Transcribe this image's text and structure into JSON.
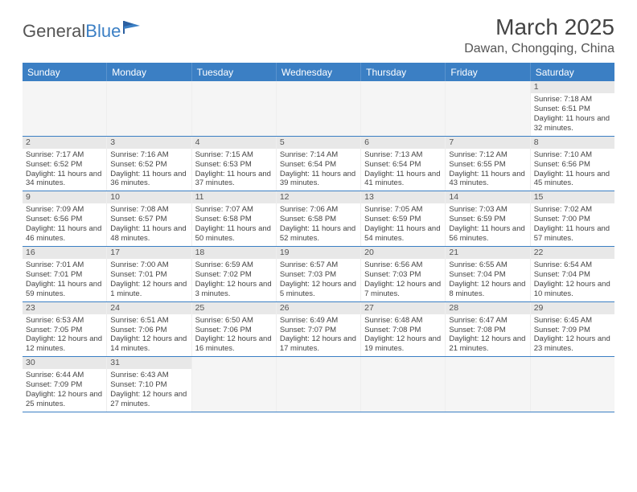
{
  "logo": {
    "part1": "General",
    "part2": "Blue"
  },
  "title": "March 2025",
  "location": "Dawan, Chongqing, China",
  "day_names": [
    "Sunday",
    "Monday",
    "Tuesday",
    "Wednesday",
    "Thursday",
    "Friday",
    "Saturday"
  ],
  "colors": {
    "header_bg": "#3b7fc4",
    "header_text": "#ffffff",
    "daynum_bg": "#e8e8e8",
    "row_border": "#3b7fc4",
    "text": "#444444"
  },
  "weeks": [
    [
      {
        "empty": true
      },
      {
        "empty": true
      },
      {
        "empty": true
      },
      {
        "empty": true
      },
      {
        "empty": true
      },
      {
        "empty": true
      },
      {
        "num": "1",
        "sunrise": "Sunrise: 7:18 AM",
        "sunset": "Sunset: 6:51 PM",
        "daylight": "Daylight: 11 hours and 32 minutes."
      }
    ],
    [
      {
        "num": "2",
        "sunrise": "Sunrise: 7:17 AM",
        "sunset": "Sunset: 6:52 PM",
        "daylight": "Daylight: 11 hours and 34 minutes."
      },
      {
        "num": "3",
        "sunrise": "Sunrise: 7:16 AM",
        "sunset": "Sunset: 6:52 PM",
        "daylight": "Daylight: 11 hours and 36 minutes."
      },
      {
        "num": "4",
        "sunrise": "Sunrise: 7:15 AM",
        "sunset": "Sunset: 6:53 PM",
        "daylight": "Daylight: 11 hours and 37 minutes."
      },
      {
        "num": "5",
        "sunrise": "Sunrise: 7:14 AM",
        "sunset": "Sunset: 6:54 PM",
        "daylight": "Daylight: 11 hours and 39 minutes."
      },
      {
        "num": "6",
        "sunrise": "Sunrise: 7:13 AM",
        "sunset": "Sunset: 6:54 PM",
        "daylight": "Daylight: 11 hours and 41 minutes."
      },
      {
        "num": "7",
        "sunrise": "Sunrise: 7:12 AM",
        "sunset": "Sunset: 6:55 PM",
        "daylight": "Daylight: 11 hours and 43 minutes."
      },
      {
        "num": "8",
        "sunrise": "Sunrise: 7:10 AM",
        "sunset": "Sunset: 6:56 PM",
        "daylight": "Daylight: 11 hours and 45 minutes."
      }
    ],
    [
      {
        "num": "9",
        "sunrise": "Sunrise: 7:09 AM",
        "sunset": "Sunset: 6:56 PM",
        "daylight": "Daylight: 11 hours and 46 minutes."
      },
      {
        "num": "10",
        "sunrise": "Sunrise: 7:08 AM",
        "sunset": "Sunset: 6:57 PM",
        "daylight": "Daylight: 11 hours and 48 minutes."
      },
      {
        "num": "11",
        "sunrise": "Sunrise: 7:07 AM",
        "sunset": "Sunset: 6:58 PM",
        "daylight": "Daylight: 11 hours and 50 minutes."
      },
      {
        "num": "12",
        "sunrise": "Sunrise: 7:06 AM",
        "sunset": "Sunset: 6:58 PM",
        "daylight": "Daylight: 11 hours and 52 minutes."
      },
      {
        "num": "13",
        "sunrise": "Sunrise: 7:05 AM",
        "sunset": "Sunset: 6:59 PM",
        "daylight": "Daylight: 11 hours and 54 minutes."
      },
      {
        "num": "14",
        "sunrise": "Sunrise: 7:03 AM",
        "sunset": "Sunset: 6:59 PM",
        "daylight": "Daylight: 11 hours and 56 minutes."
      },
      {
        "num": "15",
        "sunrise": "Sunrise: 7:02 AM",
        "sunset": "Sunset: 7:00 PM",
        "daylight": "Daylight: 11 hours and 57 minutes."
      }
    ],
    [
      {
        "num": "16",
        "sunrise": "Sunrise: 7:01 AM",
        "sunset": "Sunset: 7:01 PM",
        "daylight": "Daylight: 11 hours and 59 minutes."
      },
      {
        "num": "17",
        "sunrise": "Sunrise: 7:00 AM",
        "sunset": "Sunset: 7:01 PM",
        "daylight": "Daylight: 12 hours and 1 minute."
      },
      {
        "num": "18",
        "sunrise": "Sunrise: 6:59 AM",
        "sunset": "Sunset: 7:02 PM",
        "daylight": "Daylight: 12 hours and 3 minutes."
      },
      {
        "num": "19",
        "sunrise": "Sunrise: 6:57 AM",
        "sunset": "Sunset: 7:03 PM",
        "daylight": "Daylight: 12 hours and 5 minutes."
      },
      {
        "num": "20",
        "sunrise": "Sunrise: 6:56 AM",
        "sunset": "Sunset: 7:03 PM",
        "daylight": "Daylight: 12 hours and 7 minutes."
      },
      {
        "num": "21",
        "sunrise": "Sunrise: 6:55 AM",
        "sunset": "Sunset: 7:04 PM",
        "daylight": "Daylight: 12 hours and 8 minutes."
      },
      {
        "num": "22",
        "sunrise": "Sunrise: 6:54 AM",
        "sunset": "Sunset: 7:04 PM",
        "daylight": "Daylight: 12 hours and 10 minutes."
      }
    ],
    [
      {
        "num": "23",
        "sunrise": "Sunrise: 6:53 AM",
        "sunset": "Sunset: 7:05 PM",
        "daylight": "Daylight: 12 hours and 12 minutes."
      },
      {
        "num": "24",
        "sunrise": "Sunrise: 6:51 AM",
        "sunset": "Sunset: 7:06 PM",
        "daylight": "Daylight: 12 hours and 14 minutes."
      },
      {
        "num": "25",
        "sunrise": "Sunrise: 6:50 AM",
        "sunset": "Sunset: 7:06 PM",
        "daylight": "Daylight: 12 hours and 16 minutes."
      },
      {
        "num": "26",
        "sunrise": "Sunrise: 6:49 AM",
        "sunset": "Sunset: 7:07 PM",
        "daylight": "Daylight: 12 hours and 17 minutes."
      },
      {
        "num": "27",
        "sunrise": "Sunrise: 6:48 AM",
        "sunset": "Sunset: 7:08 PM",
        "daylight": "Daylight: 12 hours and 19 minutes."
      },
      {
        "num": "28",
        "sunrise": "Sunrise: 6:47 AM",
        "sunset": "Sunset: 7:08 PM",
        "daylight": "Daylight: 12 hours and 21 minutes."
      },
      {
        "num": "29",
        "sunrise": "Sunrise: 6:45 AM",
        "sunset": "Sunset: 7:09 PM",
        "daylight": "Daylight: 12 hours and 23 minutes."
      }
    ],
    [
      {
        "num": "30",
        "sunrise": "Sunrise: 6:44 AM",
        "sunset": "Sunset: 7:09 PM",
        "daylight": "Daylight: 12 hours and 25 minutes."
      },
      {
        "num": "31",
        "sunrise": "Sunrise: 6:43 AM",
        "sunset": "Sunset: 7:10 PM",
        "daylight": "Daylight: 12 hours and 27 minutes."
      },
      {
        "empty": true
      },
      {
        "empty": true
      },
      {
        "empty": true
      },
      {
        "empty": true
      },
      {
        "empty": true
      }
    ]
  ]
}
